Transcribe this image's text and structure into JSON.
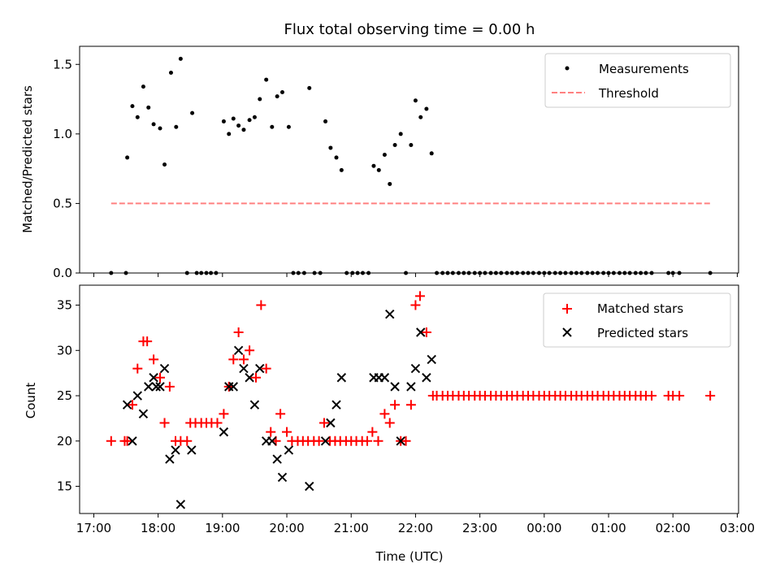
{
  "title": "Flux total observing time = 0.00 h",
  "chart_data": [
    {
      "type": "scatter",
      "ylabel": "Matched/Predicted stars",
      "xlabel": "",
      "xlim": [
        16.78,
        27.02
      ],
      "ylim": [
        0,
        1.63
      ],
      "yticks": [
        0.0,
        0.5,
        1.0,
        1.5
      ],
      "ytick_labels": [
        "0.0",
        "0.5",
        "1.0",
        "1.5"
      ],
      "xticks": [
        17,
        18,
        19,
        20,
        21,
        22,
        23,
        24,
        25,
        26,
        27
      ],
      "legend": {
        "placement": "top-right",
        "entries": [
          "Measurements",
          "Threshold"
        ]
      },
      "series": [
        {
          "name": "Measurements",
          "marker": "dot",
          "color": "#000000",
          "x": [
            17.27,
            17.5,
            17.52,
            17.6,
            17.68,
            17.77,
            17.85,
            17.93,
            18.03,
            18.1,
            18.2,
            18.28,
            18.35,
            18.45,
            18.53,
            18.6,
            18.67,
            18.75,
            18.82,
            18.9,
            19.02,
            19.1,
            19.17,
            19.25,
            19.33,
            19.42,
            19.5,
            19.58,
            19.68,
            19.77,
            19.85,
            19.93,
            20.03,
            20.1,
            20.18,
            20.27,
            20.35,
            20.43,
            20.52,
            20.6,
            20.68,
            20.77,
            20.85,
            20.93,
            21.02,
            21.1,
            21.18,
            21.27,
            21.35,
            21.43,
            21.52,
            21.6,
            21.68,
            21.77,
            21.85,
            21.93,
            22.0,
            22.08,
            22.17,
            22.25,
            22.33,
            22.42,
            22.5,
            22.58,
            22.67,
            22.75,
            22.83,
            22.92,
            23.0,
            23.08,
            23.17,
            23.25,
            23.33,
            23.42,
            23.5,
            23.58,
            23.67,
            23.75,
            23.83,
            23.92,
            24.0,
            24.08,
            24.17,
            24.25,
            24.33,
            24.42,
            24.5,
            24.58,
            24.67,
            24.75,
            24.83,
            24.92,
            25.0,
            25.08,
            25.17,
            25.25,
            25.33,
            25.42,
            25.5,
            25.58,
            25.67,
            25.93,
            26.0,
            26.1,
            26.58
          ],
          "y": [
            0.0,
            0.0,
            0.83,
            1.2,
            1.12,
            1.34,
            1.19,
            1.07,
            1.04,
            0.78,
            1.44,
            1.05,
            1.54,
            0.0,
            1.15,
            0.0,
            0.0,
            0.0,
            0.0,
            0.0,
            1.09,
            1.0,
            1.11,
            1.06,
            1.03,
            1.1,
            1.12,
            1.25,
            1.39,
            1.05,
            1.27,
            1.3,
            1.05,
            0.0,
            0.0,
            0.0,
            1.33,
            0.0,
            0.0,
            1.09,
            0.9,
            0.83,
            0.74,
            0.0,
            0.0,
            0.0,
            0.0,
            0.0,
            0.77,
            0.74,
            0.85,
            0.64,
            0.92,
            1.0,
            0.0,
            0.92,
            1.24,
            1.12,
            1.18,
            0.86,
            0.0,
            0.0,
            0.0,
            0.0,
            0.0,
            0.0,
            0.0,
            0.0,
            0.0,
            0.0,
            0.0,
            0.0,
            0.0,
            0.0,
            0.0,
            0.0,
            0.0,
            0.0,
            0.0,
            0.0,
            0.0,
            0.0,
            0.0,
            0.0,
            0.0,
            0.0,
            0.0,
            0.0,
            0.0,
            0.0,
            0.0,
            0.0,
            0.0,
            0.0,
            0.0,
            0.0,
            0.0,
            0.0,
            0.0,
            0.0,
            0.0,
            0.0,
            0.0,
            0.0,
            0.0
          ]
        },
        {
          "name": "Threshold",
          "marker": "dashed-line",
          "color": "#ff8080",
          "x": [
            17.27,
            26.58
          ],
          "y": [
            0.5,
            0.5
          ]
        }
      ]
    },
    {
      "type": "scatter",
      "ylabel": "Count",
      "xlabel": "Time (UTC)",
      "xlim": [
        16.78,
        27.02
      ],
      "ylim": [
        12,
        37.2
      ],
      "yticks": [
        15,
        20,
        25,
        30,
        35
      ],
      "ytick_labels": [
        "15",
        "20",
        "25",
        "30",
        "35"
      ],
      "xticks": [
        17,
        18,
        19,
        20,
        21,
        22,
        23,
        24,
        25,
        26,
        27
      ],
      "xtick_labels": [
        "17:00",
        "18:00",
        "19:00",
        "20:00",
        "21:00",
        "22:00",
        "23:00",
        "00:00",
        "01:00",
        "02:00",
        "03:00"
      ],
      "legend": {
        "placement": "top-right",
        "entries": [
          "Matched stars",
          "Predicted stars"
        ]
      },
      "series": [
        {
          "name": "Matched stars",
          "marker": "plus",
          "color": "#ff0000",
          "x": [
            17.27,
            17.48,
            17.52,
            17.6,
            17.68,
            17.77,
            17.83,
            17.93,
            18.03,
            18.1,
            18.18,
            18.27,
            18.35,
            18.45,
            18.5,
            18.58,
            18.67,
            18.75,
            18.83,
            18.92,
            19.02,
            19.1,
            19.17,
            19.25,
            19.33,
            19.42,
            19.52,
            19.6,
            19.68,
            19.75,
            19.83,
            19.9,
            20.0,
            20.08,
            20.17,
            20.25,
            20.33,
            20.42,
            20.5,
            20.58,
            20.67,
            20.75,
            20.83,
            20.92,
            21.0,
            21.08,
            21.17,
            21.25,
            21.33,
            21.42,
            21.52,
            21.6,
            21.68,
            21.77,
            21.85,
            21.93,
            22.0,
            22.07,
            22.17,
            22.27,
            22.33,
            22.42,
            22.5,
            22.58,
            22.67,
            22.75,
            22.83,
            22.92,
            23.0,
            23.08,
            23.17,
            23.25,
            23.33,
            23.42,
            23.5,
            23.58,
            23.67,
            23.75,
            23.83,
            23.92,
            24.0,
            24.08,
            24.17,
            24.25,
            24.33,
            24.42,
            24.5,
            24.58,
            24.67,
            24.75,
            24.83,
            24.92,
            25.0,
            25.08,
            25.17,
            25.25,
            25.33,
            25.42,
            25.5,
            25.58,
            25.67,
            25.93,
            26.0,
            26.1,
            26.58
          ],
          "y": [
            20,
            20,
            20,
            24,
            28,
            31,
            31,
            29,
            27,
            22,
            26,
            20,
            20,
            20,
            22,
            22,
            22,
            22,
            22,
            22,
            23,
            26,
            29,
            32,
            29,
            30,
            27,
            35,
            28,
            21,
            20,
            23,
            21,
            20,
            20,
            20,
            20,
            20,
            20,
            22,
            20,
            20,
            20,
            20,
            20,
            20,
            20,
            20,
            21,
            20,
            23,
            22,
            24,
            20,
            20,
            24,
            35,
            36,
            32,
            25,
            25,
            25,
            25,
            25,
            25,
            25,
            25,
            25,
            25,
            25,
            25,
            25,
            25,
            25,
            25,
            25,
            25,
            25,
            25,
            25,
            25,
            25,
            25,
            25,
            25,
            25,
            25,
            25,
            25,
            25,
            25,
            25,
            25,
            25,
            25,
            25,
            25,
            25,
            25,
            25,
            25,
            25,
            25,
            25,
            25
          ]
        },
        {
          "name": "Predicted stars",
          "marker": "x",
          "color": "#000000",
          "x": [
            17.52,
            17.6,
            17.68,
            17.77,
            17.85,
            17.93,
            17.97,
            18.03,
            18.1,
            18.18,
            18.27,
            18.35,
            18.52,
            19.02,
            19.1,
            19.17,
            19.25,
            19.33,
            19.42,
            19.5,
            19.58,
            19.68,
            19.77,
            19.85,
            19.93,
            20.03,
            20.35,
            20.6,
            20.68,
            20.77,
            20.85,
            21.35,
            21.43,
            21.52,
            21.6,
            21.68,
            21.77,
            21.93,
            22.0,
            22.08,
            22.17,
            22.25
          ],
          "y": [
            24,
            20,
            25,
            23,
            26,
            27,
            26,
            26,
            28,
            18,
            19,
            13,
            19,
            21,
            26,
            26,
            30,
            28,
            27,
            24,
            28,
            20,
            20,
            18,
            16,
            19,
            15,
            20,
            22,
            24,
            27,
            27,
            27,
            27,
            34,
            26,
            20,
            26,
            28,
            32,
            27,
            29
          ]
        }
      ]
    }
  ]
}
